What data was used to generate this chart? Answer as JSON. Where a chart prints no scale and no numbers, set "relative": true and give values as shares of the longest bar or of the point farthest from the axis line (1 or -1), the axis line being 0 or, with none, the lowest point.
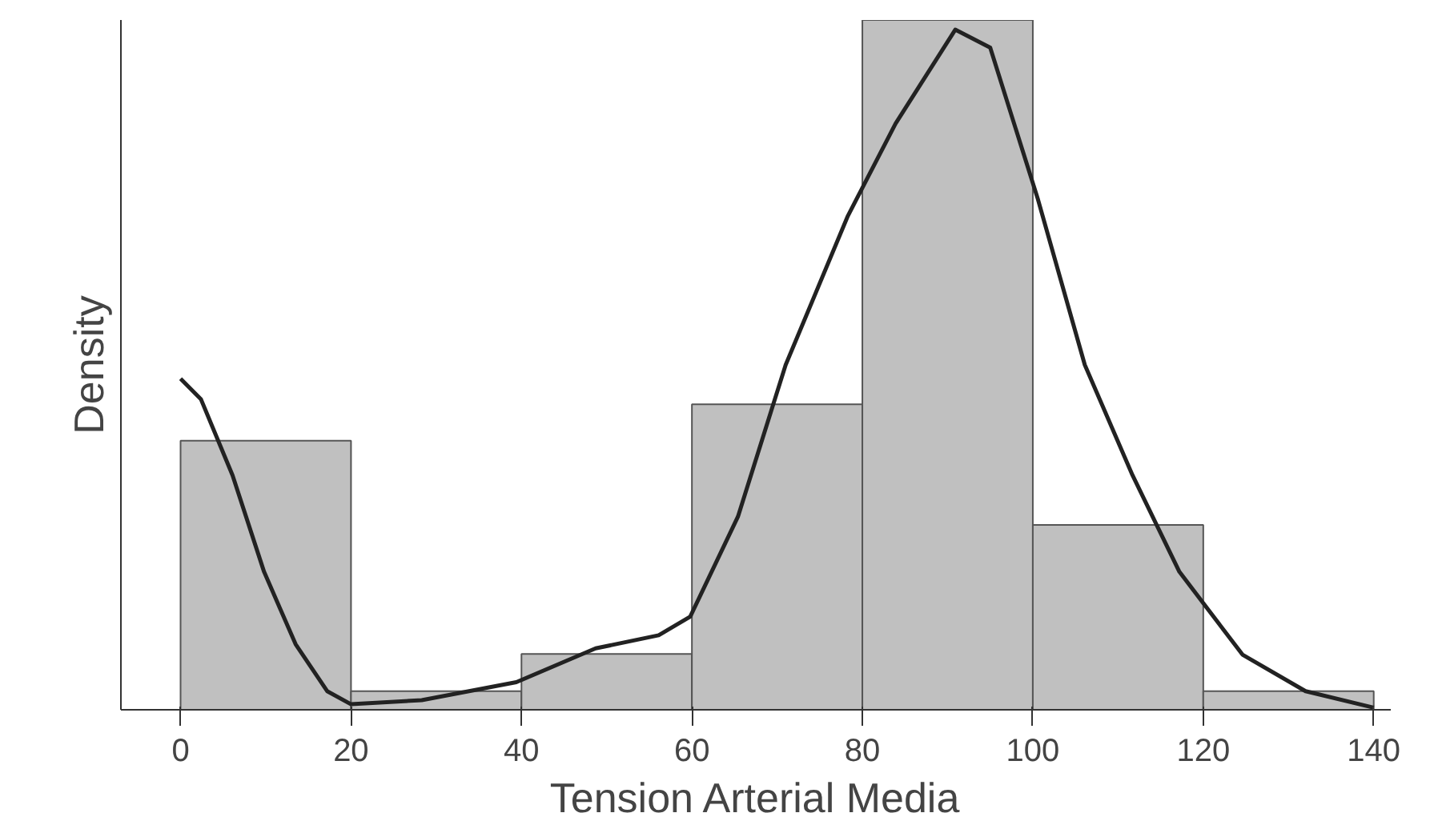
{
  "chart_data": {
    "type": "histogram",
    "xlabel": "Tension Arterial Media",
    "ylabel": "Density",
    "relative": true,
    "bins": [
      0,
      20,
      40,
      60,
      80,
      100,
      120,
      140
    ],
    "values": [
      0.39,
      0.027,
      0.081,
      0.443,
      1,
      0.268,
      0.027
    ],
    "color": "#c0c0c0",
    "series": [
      {
        "type": "line",
        "color": "#222222",
        "x": [
          0,
          2.4,
          6.1,
          9.8,
          13.5,
          17.2,
          20,
          28.3,
          39.4,
          48.7,
          56.1,
          59.8,
          65.4,
          71,
          78.3,
          83.9,
          90.9,
          95,
          100.6,
          106.1,
          111.7,
          117.2,
          124.6,
          132,
          140
        ],
        "values": [
          0.48,
          0.45,
          0.34,
          0.2,
          0.095,
          0.027,
          0.008,
          0.014,
          0.04,
          0.089,
          0.108,
          0.135,
          0.28,
          0.5,
          0.716,
          0.85,
          0.986,
          0.96,
          0.74,
          0.5,
          0.34,
          0.2,
          0.08,
          0.027,
          0.003
        ]
      }
    ],
    "xlim": [
      -7,
      142
    ],
    "xticks": [
      0,
      20,
      40,
      60,
      80,
      100,
      120,
      140
    ],
    "grid": false
  }
}
